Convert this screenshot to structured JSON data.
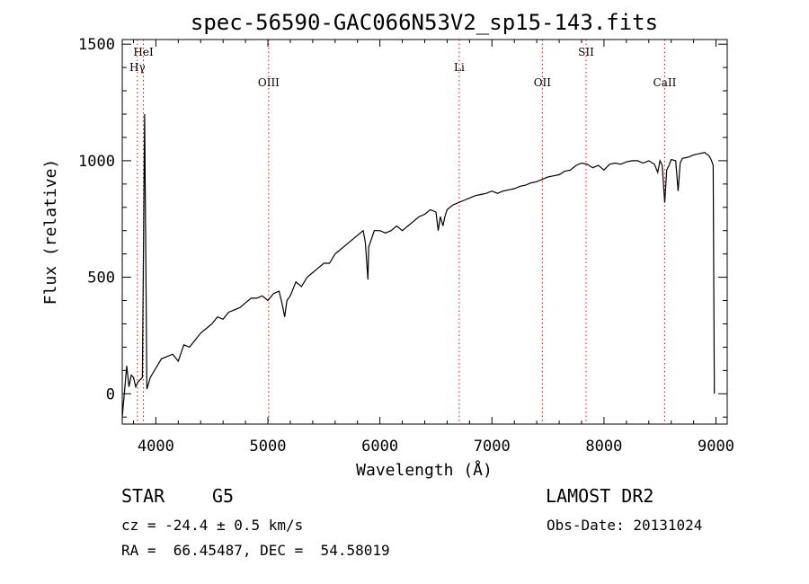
{
  "chart_data": {
    "type": "line",
    "title": "spec-56590-GAC066N53V2_sp15-143.fits",
    "xlabel": "Wavelength (Å)",
    "ylabel": "Flux (relative)",
    "xlim": [
      3700,
      9100
    ],
    "ylim": [
      -130,
      1520
    ],
    "xticks": [
      4000,
      5000,
      6000,
      7000,
      8000,
      9000
    ],
    "yticks": [
      0,
      500,
      1000,
      1500
    ],
    "grid": false,
    "line_color": "#000000",
    "marker_color": "#ff0000",
    "series": [
      {
        "x": [
          3700,
          3740,
          3760,
          3780,
          3800,
          3820,
          3840,
          3860,
          3880,
          3900,
          3920,
          3950,
          4000,
          4050,
          4100,
          4150,
          4200,
          4250,
          4300,
          4350,
          4400,
          4450,
          4500,
          4550,
          4600,
          4650,
          4700,
          4750,
          4800,
          4850,
          4900,
          4950,
          5000,
          5050,
          5100,
          5130,
          5150,
          5170,
          5200,
          5250,
          5300,
          5350,
          5400,
          5450,
          5500,
          5550,
          5600,
          5650,
          5700,
          5750,
          5800,
          5850,
          5870,
          5880,
          5893,
          5900,
          5950,
          6000,
          6050,
          6100,
          6150,
          6200,
          6250,
          6300,
          6350,
          6400,
          6450,
          6500,
          6520,
          6540,
          6563,
          6580,
          6600,
          6650,
          6700,
          6750,
          6800,
          6850,
          6900,
          6950,
          7000,
          7050,
          7100,
          7150,
          7200,
          7250,
          7300,
          7350,
          7400,
          7450,
          7500,
          7550,
          7600,
          7650,
          7700,
          7750,
          7800,
          7850,
          7900,
          7950,
          8000,
          8050,
          8100,
          8150,
          8200,
          8250,
          8300,
          8350,
          8400,
          8450,
          8480,
          8500,
          8520,
          8542,
          8560,
          8580,
          8600,
          8640,
          8662,
          8680,
          8700,
          8750,
          8800,
          8850,
          8900,
          8940,
          8960,
          8975,
          8985
        ],
        "y": [
          -100,
          120,
          30,
          80,
          70,
          30,
          50,
          60,
          70,
          1200,
          20,
          70,
          110,
          150,
          160,
          170,
          140,
          210,
          200,
          230,
          260,
          280,
          300,
          330,
          320,
          350,
          360,
          370,
          390,
          410,
          410,
          420,
          400,
          430,
          440,
          380,
          330,
          400,
          420,
          480,
          460,
          500,
          520,
          540,
          560,
          560,
          600,
          620,
          640,
          660,
          680,
          700,
          650,
          580,
          490,
          630,
          700,
          700,
          690,
          700,
          720,
          700,
          720,
          740,
          760,
          770,
          790,
          780,
          700,
          760,
          720,
          760,
          790,
          810,
          820,
          830,
          840,
          850,
          855,
          860,
          870,
          860,
          870,
          875,
          880,
          890,
          895,
          905,
          910,
          920,
          930,
          935,
          940,
          955,
          960,
          980,
          990,
          985,
          970,
          980,
          960,
          985,
          990,
          985,
          995,
          1000,
          1000,
          990,
          1000,
          985,
          950,
          1000,
          980,
          820,
          960,
          980,
          1005,
          1000,
          870,
          990,
          1010,
          1015,
          1025,
          1030,
          1035,
          1020,
          1000,
          980,
          0
        ]
      }
    ],
    "lines": [
      {
        "label": "HeI",
        "x": 3889,
        "label_level": "top"
      },
      {
        "label": "Hγ",
        "x": 3835,
        "label_level": "second"
      },
      {
        "label": "OIII",
        "x": 5007,
        "label_level": "lower"
      },
      {
        "label": "Li",
        "x": 6708,
        "label_level": "second"
      },
      {
        "label": "OII",
        "x": 7450,
        "label_level": "lower"
      },
      {
        "label": "SII",
        "x": 7840,
        "label_level": "top"
      },
      {
        "label": "CaII",
        "x": 8542,
        "label_level": "lower"
      }
    ]
  },
  "info": {
    "class_label": "STAR",
    "subclass": "G5",
    "survey": "LAMOST DR2",
    "redshift_line": "cz = -24.4 ± 0.5 km/s",
    "obs_date_line": "Obs-Date: 20131024",
    "coords_line": "RA =  66.45487, DEC =  54.58019"
  }
}
